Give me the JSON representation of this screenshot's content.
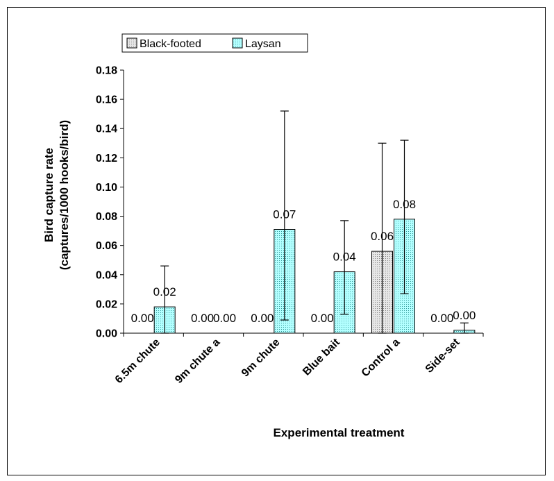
{
  "chart_data": {
    "type": "bar",
    "title": "",
    "xlabel": "Experimental treatment",
    "ylabel_line1": "Bird capture rate",
    "ylabel_line2": "(captures/1000 hooks/bird)",
    "ylim": [
      0,
      0.18
    ],
    "ytick_step": 0.02,
    "ytick_labels": [
      "0.00",
      "0.02",
      "0.04",
      "0.06",
      "0.08",
      "0.10",
      "0.12",
      "0.14",
      "0.16",
      "0.18"
    ],
    "categories": [
      "6.5m chute",
      "9m chute a",
      "9m chute",
      "Blue bait",
      "Control a",
      "Side-set"
    ],
    "legend_position": "top-left",
    "grid": false,
    "series": [
      {
        "name": "Black-footed",
        "color": "#d9d9d9",
        "pattern": "dots",
        "values": [
          0.0,
          0.0,
          0.0,
          0.0,
          0.056,
          0.0
        ],
        "data_labels": [
          "0.00",
          "0.00",
          "0.00",
          "0.00",
          "0.06",
          "0.00"
        ],
        "error_upper": [
          null,
          null,
          null,
          null,
          0.13,
          null
        ],
        "error_lower": [
          null,
          null,
          null,
          null,
          0.0,
          null
        ]
      },
      {
        "name": "Laysan",
        "color": "#99ffff",
        "pattern": "dots",
        "values": [
          0.018,
          0.0,
          0.071,
          0.042,
          0.078,
          0.002
        ],
        "data_labels": [
          "0.02",
          "0.00",
          "0.07",
          "0.04",
          "0.08",
          "0.00"
        ],
        "error_upper": [
          0.046,
          null,
          0.152,
          0.077,
          0.132,
          0.007
        ],
        "error_lower": [
          0.0,
          null,
          0.009,
          0.013,
          0.027,
          0.0
        ]
      }
    ]
  }
}
